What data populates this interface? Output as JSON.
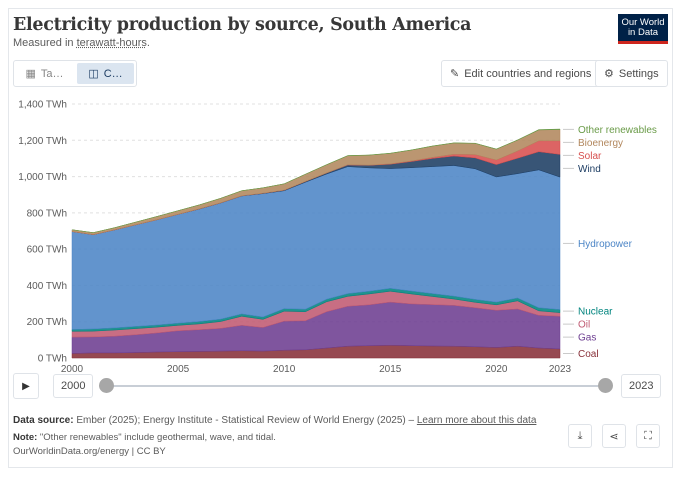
{
  "header": {
    "title": "Electricity production by source, South America",
    "subtitle_prefix": "Measured in ",
    "subtitle_link": "terawatt-hours",
    "subtitle_suffix": ".",
    "logo_line1": "Our World",
    "logo_line2": "in Data"
  },
  "tabs": [
    {
      "label": "Ta…",
      "icon": "table-icon"
    },
    {
      "label": "C…",
      "icon": "chart-icon"
    }
  ],
  "toolbar": {
    "edit_label": "Edit countries and regions",
    "settings_label": "Settings"
  },
  "timeline": {
    "start_year": "2000",
    "end_year": "2023"
  },
  "footer": {
    "source_label": "Data source:",
    "source_text": " Ember (2025); Energy Institute - Statistical Review of World Energy (2025) – ",
    "learn_more": "Learn more about this data",
    "note_label": "Note:",
    "note_text": " \"Other renewables\" include geothermal, wave, and tidal.",
    "license": "OurWorldinData.org/energy | CC BY"
  },
  "chart_data": {
    "type": "area",
    "stacked": true,
    "title": "Electricity production by source, South America",
    "ylabel": "",
    "unit": "TWh",
    "ylim": [
      0,
      1400
    ],
    "yticks": [
      0,
      200,
      400,
      600,
      800,
      1000,
      1200,
      1400
    ],
    "ytick_labels": [
      "0 TWh",
      "200 TWh",
      "400 TWh",
      "600 TWh",
      "800 TWh",
      "1,000 TWh",
      "1,200 TWh",
      "1,400 TWh"
    ],
    "xticks": [
      2000,
      2005,
      2010,
      2015,
      2020,
      2023
    ],
    "grid": true,
    "legend_placement": "right, inline labels",
    "x": [
      2000,
      2001,
      2002,
      2003,
      2004,
      2005,
      2006,
      2007,
      2008,
      2009,
      2010,
      2011,
      2012,
      2013,
      2014,
      2015,
      2016,
      2017,
      2018,
      2019,
      2020,
      2021,
      2022,
      2023
    ],
    "series": [
      {
        "name": "Coal",
        "color": "#883039",
        "values": [
          25,
          28,
          28,
          30,
          33,
          35,
          36,
          38,
          40,
          38,
          43,
          45,
          55,
          65,
          68,
          70,
          68,
          66,
          65,
          62,
          58,
          65,
          55,
          50
        ]
      },
      {
        "name": "Gas",
        "color": "#6d3e91",
        "values": [
          90,
          88,
          92,
          98,
          105,
          115,
          120,
          125,
          140,
          130,
          160,
          160,
          200,
          220,
          225,
          238,
          230,
          228,
          225,
          215,
          205,
          205,
          180,
          180
        ]
      },
      {
        "name": "Oil",
        "color": "#c05a72",
        "values": [
          32,
          32,
          34,
          34,
          32,
          30,
          32,
          38,
          50,
          45,
          55,
          50,
          55,
          55,
          60,
          60,
          55,
          45,
          35,
          30,
          30,
          45,
          25,
          20
        ]
      },
      {
        "name": "Nuclear",
        "color": "#00847e",
        "values": [
          10,
          12,
          12,
          12,
          12,
          12,
          13,
          13,
          13,
          13,
          14,
          14,
          14,
          15,
          15,
          16,
          16,
          16,
          16,
          16,
          15,
          16,
          17,
          17
        ]
      },
      {
        "name": "Hydropower",
        "color": "#4c85c6",
        "values": [
          540,
          520,
          540,
          560,
          580,
          600,
          620,
          640,
          650,
          680,
          650,
          700,
          690,
          700,
          680,
          660,
          680,
          700,
          720,
          720,
          690,
          685,
          760,
          730
        ]
      },
      {
        "name": "Wind",
        "color": "#1d3d63",
        "values": [
          0,
          0,
          0,
          0,
          0,
          0,
          1,
          1,
          1,
          2,
          3,
          4,
          6,
          9,
          14,
          24,
          34,
          45,
          52,
          60,
          68,
          85,
          100,
          125
        ]
      },
      {
        "name": "Solar",
        "color": "#d74f4e",
        "values": [
          0,
          0,
          0,
          0,
          0,
          0,
          0,
          0,
          0,
          0,
          0,
          0,
          0,
          1,
          1,
          2,
          3,
          6,
          10,
          18,
          25,
          40,
          60,
          75
        ]
      },
      {
        "name": "Bioenergy",
        "color": "#b2875d",
        "values": [
          10,
          11,
          12,
          15,
          18,
          20,
          22,
          25,
          28,
          30,
          35,
          40,
          45,
          50,
          55,
          58,
          60,
          62,
          62,
          62,
          60,
          60,
          60,
          62
        ]
      },
      {
        "name": "Other renewables",
        "color": "#6a9b48",
        "values": [
          0,
          0,
          0,
          0,
          0,
          0,
          0,
          0,
          0,
          0,
          0,
          0,
          1,
          1,
          1,
          1,
          1,
          1,
          1,
          1,
          1,
          1,
          2,
          3
        ]
      }
    ]
  }
}
